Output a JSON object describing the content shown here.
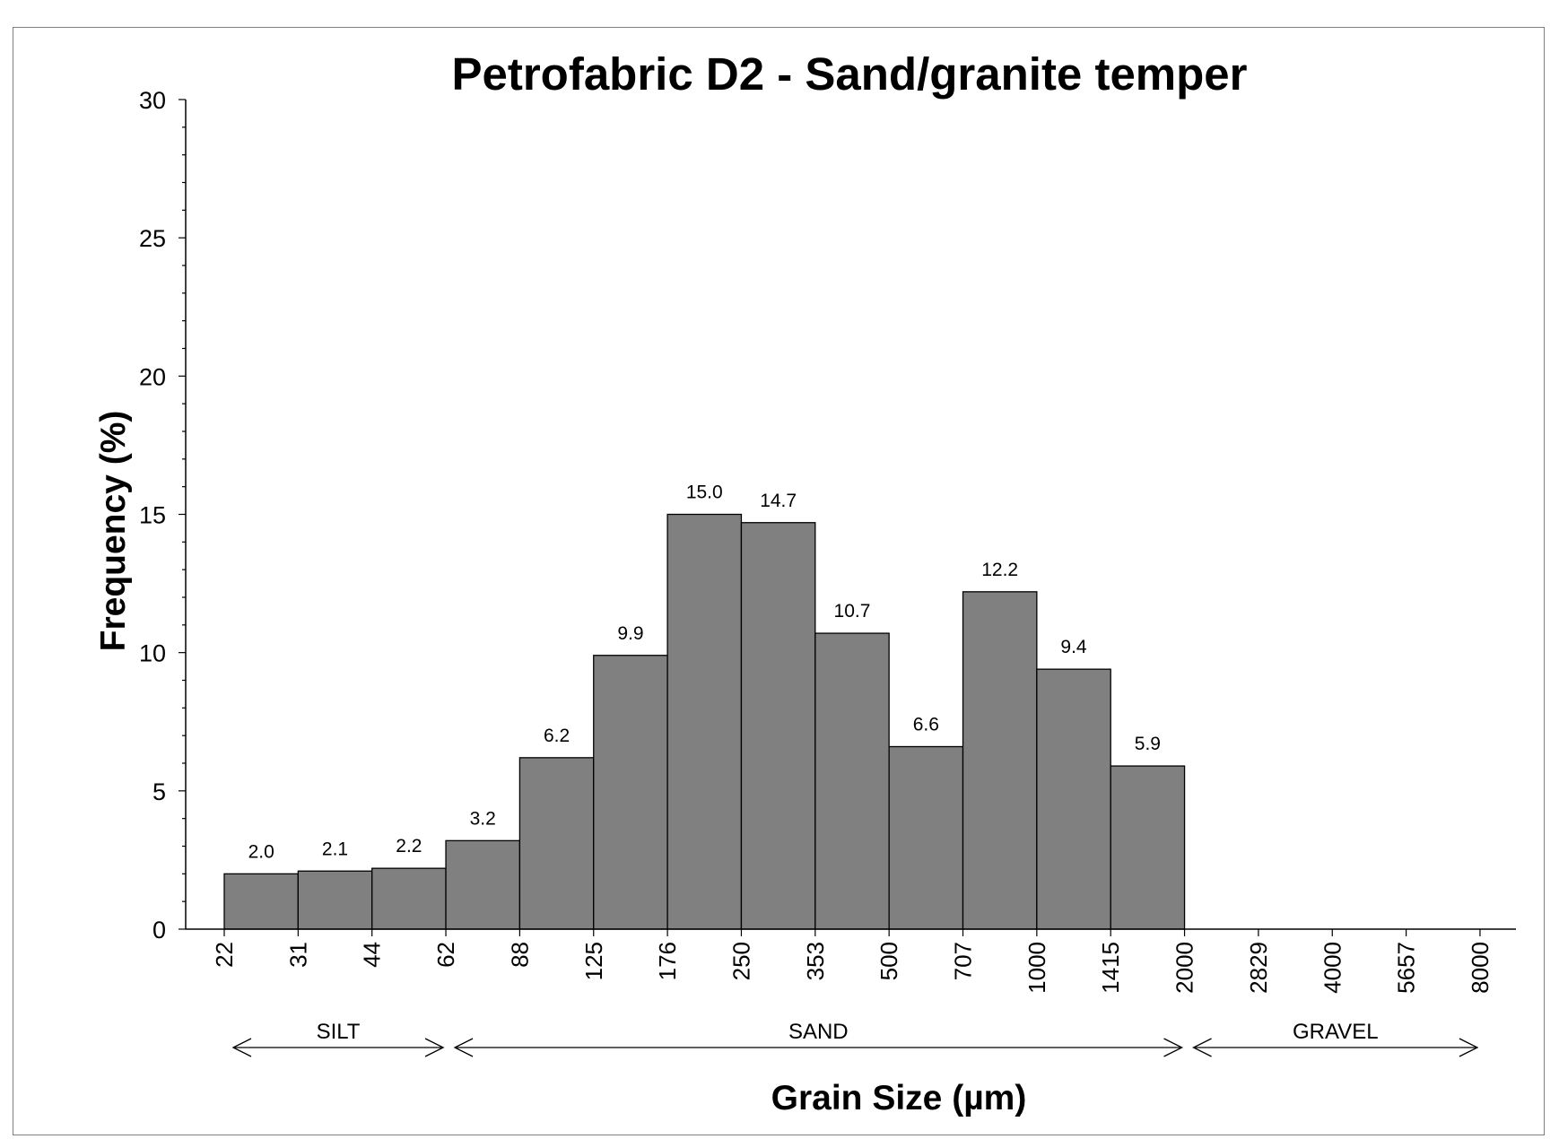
{
  "chart_data": {
    "type": "bar",
    "title": "Petrofabric D2 - Sand/granite temper",
    "ylabel": "Frequency (%)",
    "xlabel": "Grain Size (µm)",
    "ylim": [
      0,
      30
    ],
    "yticks": [
      0,
      5,
      10,
      15,
      20,
      25,
      30
    ],
    "bin_edges": [
      "22",
      "31",
      "44",
      "62",
      "88",
      "125",
      "176",
      "250",
      "353",
      "500",
      "707",
      "1000",
      "1415",
      "2000",
      "2829",
      "4000",
      "5657",
      "8000"
    ],
    "values": [
      2.0,
      2.1,
      2.2,
      3.2,
      6.2,
      9.9,
      15.0,
      14.7,
      10.7,
      6.6,
      12.2,
      9.4,
      5.9,
      0,
      0,
      0,
      0
    ],
    "value_labels": [
      "2.0",
      "2.1",
      "2.2",
      "3.2",
      "6.2",
      "9.9",
      "15.0",
      "14.7",
      "10.7",
      "6.6",
      "12.2",
      "9.4",
      "5.9",
      "",
      "",
      "",
      ""
    ],
    "grid": false,
    "bar_color": "#808080",
    "regions": [
      {
        "label": "SILT",
        "from": "22",
        "to": "62"
      },
      {
        "label": "SAND",
        "from": "62",
        "to": "2000"
      },
      {
        "label": "GRAVEL",
        "from": "2000",
        "to": "8000"
      }
    ]
  }
}
